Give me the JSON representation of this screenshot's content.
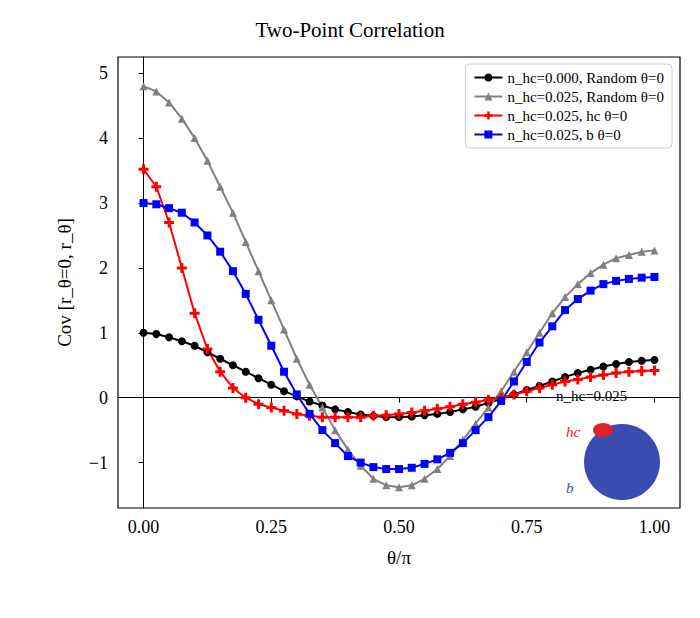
{
  "chart_data": {
    "type": "line",
    "title": "Two-Point Correlation",
    "x_label": "θ/π",
    "y_label": "Cov [r_θ=0, r_θ]",
    "x": [
      0,
      0.025,
      0.05,
      0.075,
      0.1,
      0.125,
      0.15,
      0.175,
      0.2,
      0.225,
      0.25,
      0.275,
      0.3,
      0.325,
      0.35,
      0.375,
      0.4,
      0.425,
      0.45,
      0.475,
      0.5,
      0.525,
      0.55,
      0.575,
      0.6,
      0.625,
      0.65,
      0.675,
      0.7,
      0.725,
      0.75,
      0.775,
      0.8,
      0.825,
      0.85,
      0.875,
      0.9,
      0.925,
      0.95,
      0.975,
      1.0
    ],
    "series": [
      {
        "name": "n_hc=0.000, Random θ=0",
        "color": "#000000",
        "marker": "circle",
        "values": [
          1.0,
          0.98,
          0.93,
          0.87,
          0.8,
          0.7,
          0.6,
          0.5,
          0.4,
          0.3,
          0.2,
          0.1,
          0.02,
          -0.06,
          -0.12,
          -0.18,
          -0.22,
          -0.26,
          -0.28,
          -0.3,
          -0.3,
          -0.29,
          -0.27,
          -0.25,
          -0.22,
          -0.18,
          -0.14,
          -0.08,
          -0.02,
          0.05,
          0.12,
          0.18,
          0.25,
          0.32,
          0.38,
          0.43,
          0.48,
          0.52,
          0.55,
          0.57,
          0.58
        ]
      },
      {
        "name": "n_hc=0.025, Random θ=0",
        "color": "#808080",
        "marker": "triangle",
        "values": [
          4.8,
          4.72,
          4.55,
          4.3,
          4.0,
          3.65,
          3.25,
          2.85,
          2.4,
          1.95,
          1.5,
          1.05,
          0.6,
          0.2,
          -0.15,
          -0.5,
          -0.8,
          -1.05,
          -1.25,
          -1.35,
          -1.38,
          -1.35,
          -1.25,
          -1.1,
          -0.9,
          -0.65,
          -0.4,
          -0.15,
          0.1,
          0.4,
          0.7,
          1.0,
          1.3,
          1.55,
          1.75,
          1.92,
          2.05,
          2.15,
          2.2,
          2.25,
          2.27
        ]
      },
      {
        "name": "n_hc=0.025, hc θ=0",
        "color": "#ff0000",
        "marker": "plus",
        "values": [
          3.52,
          3.25,
          2.7,
          2.0,
          1.3,
          0.75,
          0.4,
          0.15,
          0.0,
          -0.1,
          -0.15,
          -0.2,
          -0.25,
          -0.28,
          -0.3,
          -0.3,
          -0.3,
          -0.3,
          -0.28,
          -0.27,
          -0.25,
          -0.23,
          -0.2,
          -0.17,
          -0.14,
          -0.1,
          -0.07,
          -0.03,
          0.0,
          0.05,
          0.1,
          0.15,
          0.2,
          0.25,
          0.28,
          0.32,
          0.35,
          0.38,
          0.4,
          0.41,
          0.42
        ]
      },
      {
        "name": "n_hc=0.025, b θ=0",
        "color": "#0000ff",
        "marker": "square",
        "values": [
          3.0,
          2.98,
          2.92,
          2.85,
          2.7,
          2.5,
          2.25,
          1.95,
          1.6,
          1.2,
          0.8,
          0.4,
          0.05,
          -0.25,
          -0.5,
          -0.7,
          -0.9,
          -1.0,
          -1.07,
          -1.1,
          -1.1,
          -1.08,
          -1.02,
          -0.95,
          -0.85,
          -0.7,
          -0.5,
          -0.3,
          -0.05,
          0.25,
          0.55,
          0.85,
          1.1,
          1.35,
          1.52,
          1.65,
          1.75,
          1.8,
          1.83,
          1.85,
          1.86
        ]
      }
    ],
    "xlim": [
      -0.05,
      1.05
    ],
    "xticks": [
      {
        "value": 0,
        "label": "0.00"
      },
      {
        "value": 0.25,
        "label": "0.25"
      },
      {
        "value": 0.5,
        "label": "0.50"
      },
      {
        "value": 0.75,
        "label": "0.75"
      },
      {
        "value": 1.0,
        "label": "1.00"
      }
    ],
    "ylim": [
      -1.7,
      5.25
    ],
    "yticks": [
      {
        "value": -1,
        "label": "−1"
      },
      0,
      1,
      2,
      3,
      4,
      5
    ],
    "grid": false,
    "legend": "upper right",
    "annotations": {
      "inset_title": "n_hc=0.025",
      "hc": "hc",
      "b": "b"
    }
  }
}
